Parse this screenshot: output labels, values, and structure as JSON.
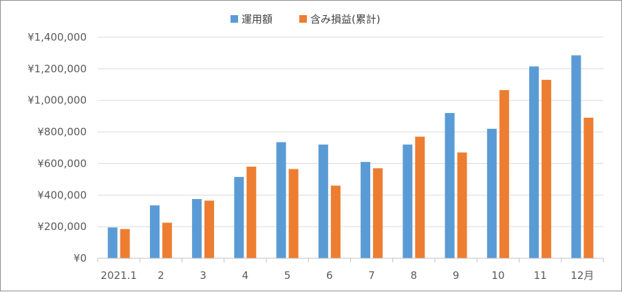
{
  "chart_data": {
    "type": "bar",
    "categories": [
      "2021.1",
      "2",
      "3",
      "4",
      "5",
      "6",
      "7",
      "8",
      "9",
      "10",
      "11",
      "12月"
    ],
    "series": [
      {
        "name": "運用額",
        "color": "#5b9bd5",
        "values": [
          195000,
          335000,
          375000,
          515000,
          735000,
          720000,
          610000,
          720000,
          920000,
          820000,
          1215000,
          1285000
        ]
      },
      {
        "name": "含み損益(累計)",
        "color": "#ed7d31",
        "values": [
          185000,
          225000,
          365000,
          580000,
          565000,
          460000,
          570000,
          770000,
          670000,
          1065000,
          1130000,
          890000
        ]
      }
    ],
    "y_ticks": [
      "¥0",
      "¥200,000",
      "¥400,000",
      "¥600,000",
      "¥800,000",
      "¥1,000,000",
      "¥1,200,000",
      "¥1,400,000"
    ],
    "ylim": [
      0,
      1400000
    ],
    "y_step": 200000,
    "grid": true,
    "legend_position": "top-center",
    "title": "",
    "xlabel": "",
    "ylabel": ""
  }
}
